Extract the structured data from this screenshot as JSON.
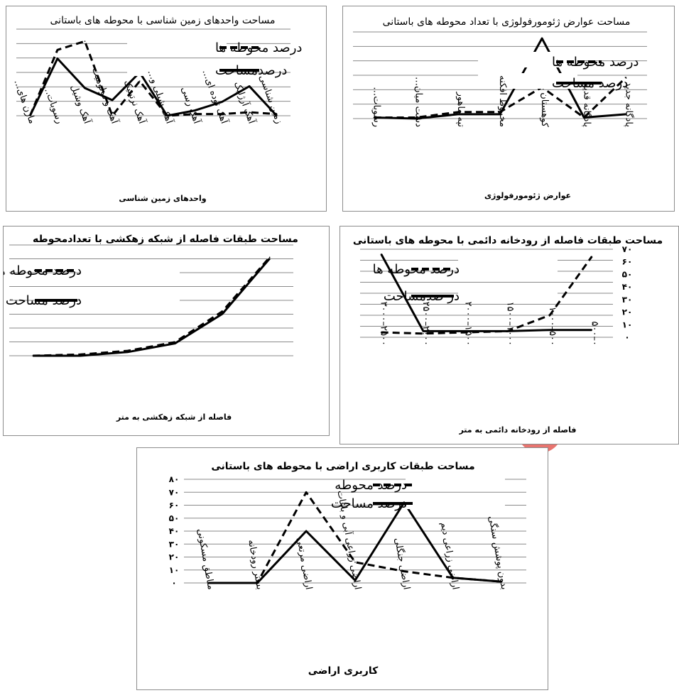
{
  "chart_data": [
    {
      "type": "line",
      "title": "مساحت واحدهای زمین شناسی با محوطه های باستانی",
      "xlabel": "واحدهای زمین شناسی",
      "ylabel": "",
      "categories": [
        "مارن های…",
        "رسوبات…",
        "آهک وشیل",
        "آهک و دولومیت",
        "آهک نرتیتیک",
        "آهک شیلی و…",
        "آهک رسی",
        "آهک توده ای…",
        "آهک آرژلیک",
        "زمین شناسی"
      ],
      "series": [
        {
          "name": "درصد محوطه ها",
          "style": "dashed",
          "values": [
            0,
            38,
            43,
            0,
            20,
            0,
            1,
            1,
            2,
            1
          ]
        },
        {
          "name": "درصدمساحت",
          "style": "solid",
          "values": [
            0,
            33,
            16,
            9,
            25,
            0,
            3,
            8,
            17,
            0
          ]
        }
      ],
      "ylim": [
        0,
        50
      ],
      "grid": true,
      "legend": "top-right"
    },
    {
      "type": "line",
      "title": "مساحت عوارض ژئومورفولوژی با تعداد محوطه های باستانی",
      "xlabel": "عوارض ژئومورفولوژی",
      "ylabel": "",
      "categories": [
        "رسوبات…",
        "دشت میان…",
        "تپه ماهور",
        "مخروط افکنه",
        "کوهستان",
        "پادگانه قدیم",
        "پادگانه جدید"
      ],
      "series": [
        {
          "name": "درصد محوطه ها",
          "style": "dashed",
          "values": [
            1,
            1,
            6,
            6,
            29,
            1,
            38
          ]
        },
        {
          "name": "درصد مساحت",
          "style": "solid",
          "values": [
            1,
            0,
            4,
            4,
            74,
            1,
            4
          ]
        }
      ],
      "ylim": [
        0,
        80
      ],
      "grid": true,
      "legend": "top-right"
    },
    {
      "type": "line",
      "title": "مساحت طبقات فاصله از شبکه زهکشی با تعدادمحوطه",
      "xlabel": "فاصله از شبکه زهکشی به متر",
      "ylabel": "",
      "categories": [
        "",
        "",
        "",
        "",
        "",
        ""
      ],
      "series": [
        {
          "name": "درصد محوطه ها",
          "style": "dashed",
          "values": [
            0,
            1,
            4,
            11,
            36,
            80
          ]
        },
        {
          "name": "درصد مساحت",
          "style": "solid",
          "values": [
            0,
            0,
            3,
            10,
            34,
            79
          ]
        }
      ],
      "ylim": [
        0,
        90
      ],
      "grid": true,
      "legend": "top-left"
    },
    {
      "type": "line",
      "title": "مساحت طبقات فاصله از رودخانه دائمی با محوطه های باستانی",
      "xlabel": "فاصله از رودخانه دائمی به متر",
      "ylabel": "",
      "yticks": [
        "۰",
        "۱۰",
        "۲۰",
        "۳۰",
        "۴۰",
        "۵۰",
        "۶۰",
        "۷۰"
      ],
      "categories": [
        "۲۵۰۰–۳۰۰۰",
        "۲۰۰۰–۲۵۰۰",
        "۱۵۰۰–۲۰۰۰",
        "۱۰۰۰–۱۵۰۰",
        "۵۰۰–۱۰۰۰",
        "۰–۵۰۰"
      ],
      "series": [
        {
          "name": "درصد محوطه ها",
          "style": "dashed",
          "values": [
            4,
            3,
            4,
            5,
            18,
            66
          ]
        },
        {
          "name": "در صدمساحت",
          "style": "solid",
          "values": [
            68,
            5,
            5,
            5,
            6,
            6
          ]
        }
      ],
      "ylim": [
        0,
        72
      ],
      "grid": true,
      "legend": "top-right"
    },
    {
      "type": "line",
      "title": "مساحت طبقات کاربری اراضی با محوطه های باستانی",
      "xlabel": "کاربری اراضی",
      "ylabel": "",
      "yticks": [
        "۰",
        "۱۰",
        "۲۰",
        "۳۰",
        "۴۰",
        "۵۰",
        "۶۰",
        "۷۰",
        "۸۰"
      ],
      "categories": [
        "مناطق مسکونی",
        "بستر رودخانه",
        "اراضی مرتعی",
        "اراضی زراعی آبی و باغات",
        "اراضی جنگلی",
        "اراضی زراعی دیم",
        "بدون پوشش سنگی"
      ],
      "series": [
        {
          "name": "درصد محوطه",
          "style": "dashed",
          "values": [
            0,
            0,
            70,
            16,
            9,
            4,
            1
          ]
        },
        {
          "name": "درصد مساحت",
          "style": "solid",
          "values": [
            0,
            0,
            40,
            2,
            62,
            4,
            1
          ]
        }
      ],
      "ylim": [
        0,
        80
      ],
      "grid": true,
      "legend": "top-right"
    }
  ]
}
